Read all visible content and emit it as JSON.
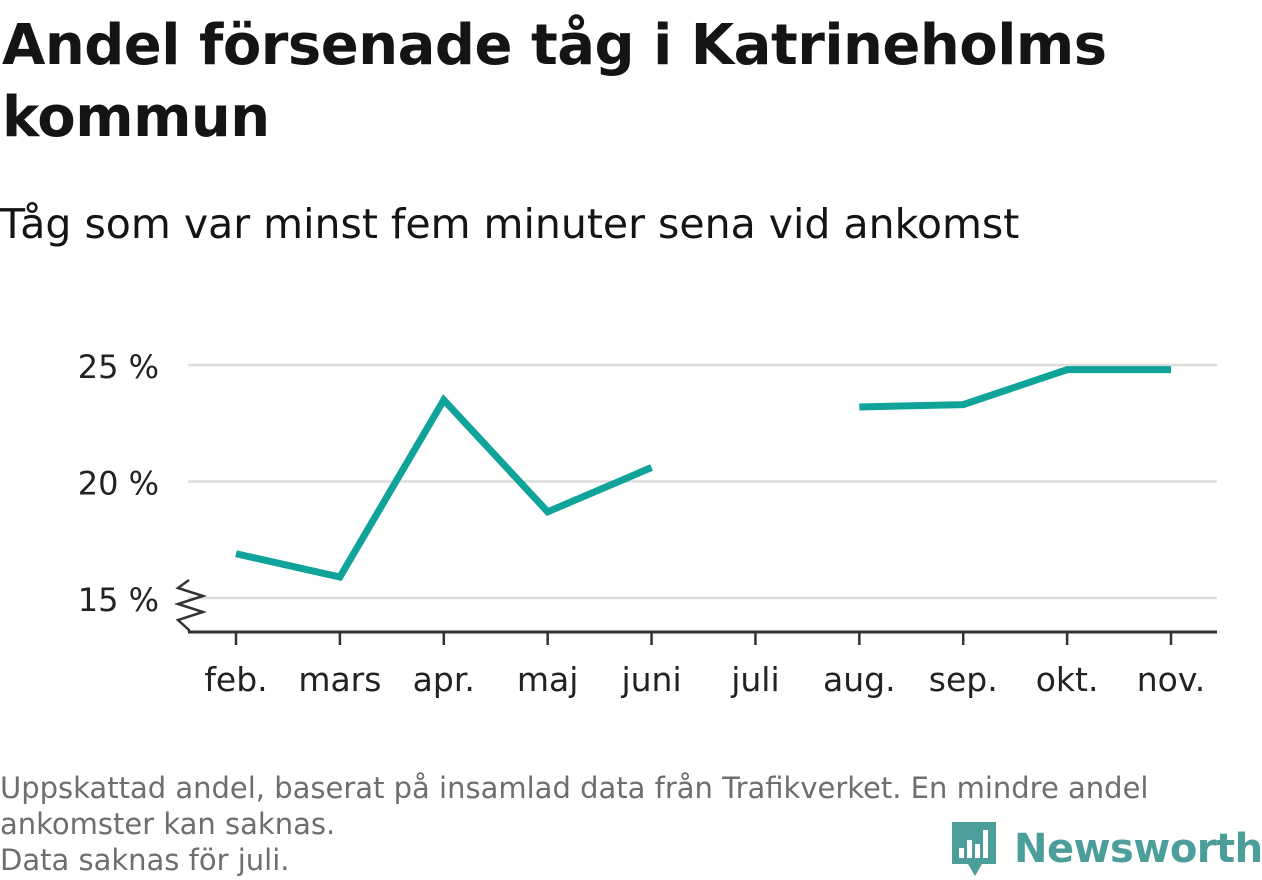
{
  "title": "Andel försenade tåg i Katrineholms kommun",
  "subtitle": "Tåg som var minst fem minuter sena vid ankomst",
  "footnote": {
    "line1": "Uppskattad andel, baserat på insamlad data från Trafikverket. En mindre andel",
    "line2": "ankomster kan saknas.",
    "line3": "Data saknas för juli."
  },
  "brand": {
    "name": "Newsworthy",
    "icon": "bar-chart-speech-bubble-icon"
  },
  "colors": {
    "line": "#0fa39a",
    "grid": "#dddddd",
    "axis": "#333333",
    "brand": "#4b9e99"
  },
  "chart_data": {
    "type": "line",
    "categories": [
      "feb.",
      "mars",
      "apr.",
      "maj",
      "juni",
      "juli",
      "aug.",
      "sep.",
      "okt.",
      "nov."
    ],
    "series": [
      {
        "values": [
          16.9,
          15.9,
          23.5,
          18.7,
          20.6,
          null,
          23.2,
          23.3,
          24.8,
          24.8
        ]
      }
    ],
    "yticks": [
      "15 %",
      "20 %",
      "25 %"
    ],
    "ytick_values": [
      15,
      20,
      25
    ],
    "ylim": [
      13.5,
      25
    ],
    "y_axis_break": true,
    "grid": true,
    "legend": "none"
  }
}
